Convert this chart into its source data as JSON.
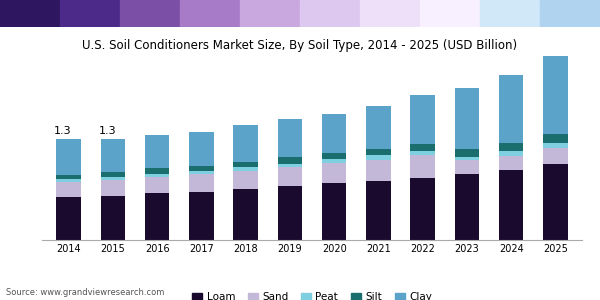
{
  "title": "U.S. Soil Conditioners Market Size, By Soil Type, 2014 - 2025 (USD Billion)",
  "years": [
    2014,
    2015,
    2016,
    2017,
    2018,
    2019,
    2020,
    2021,
    2022,
    2023,
    2024,
    2025
  ],
  "loam": [
    0.55,
    0.57,
    0.6,
    0.62,
    0.65,
    0.69,
    0.73,
    0.76,
    0.8,
    0.85,
    0.9,
    0.97
  ],
  "sand": [
    0.19,
    0.2,
    0.21,
    0.22,
    0.23,
    0.24,
    0.26,
    0.27,
    0.29,
    0.17,
    0.18,
    0.21
  ],
  "peat": [
    0.04,
    0.04,
    0.04,
    0.04,
    0.05,
    0.05,
    0.05,
    0.06,
    0.05,
    0.05,
    0.06,
    0.07
  ],
  "silt": [
    0.05,
    0.06,
    0.07,
    0.07,
    0.07,
    0.08,
    0.08,
    0.08,
    0.09,
    0.1,
    0.1,
    0.11
  ],
  "clay": [
    0.47,
    0.43,
    0.43,
    0.44,
    0.47,
    0.49,
    0.5,
    0.55,
    0.63,
    0.78,
    0.88,
    1.0
  ],
  "loam_color": "#1a0a2e",
  "sand_color": "#c4b8d8",
  "peat_color": "#7ecfdf",
  "silt_color": "#1b6e6e",
  "clay_color": "#5ba3c9",
  "annotations": [
    {
      "x": 0,
      "label": "1.3"
    },
    {
      "x": 1,
      "label": "1.3"
    }
  ],
  "source": "Source: www.grandviewresearch.com",
  "legend_labels": [
    "Loam",
    "Sand",
    "Peat",
    "Silt",
    "Clay"
  ],
  "bar_width": 0.55,
  "ylim": [
    0,
    2.5
  ],
  "background_color": "#ffffff",
  "title_fontsize": 8.5,
  "tick_fontsize": 7,
  "legend_fontsize": 7.5,
  "source_fontsize": 6,
  "header_colors": [
    "#2e1760",
    "#4b2a8a",
    "#7b4fa6",
    "#a87bc8",
    "#c9a8e0",
    "#ddc8f0",
    "#eee0f8",
    "#f8f0ff",
    "#d0e8f8",
    "#b0d4f0"
  ],
  "anno_fontsize": 8
}
